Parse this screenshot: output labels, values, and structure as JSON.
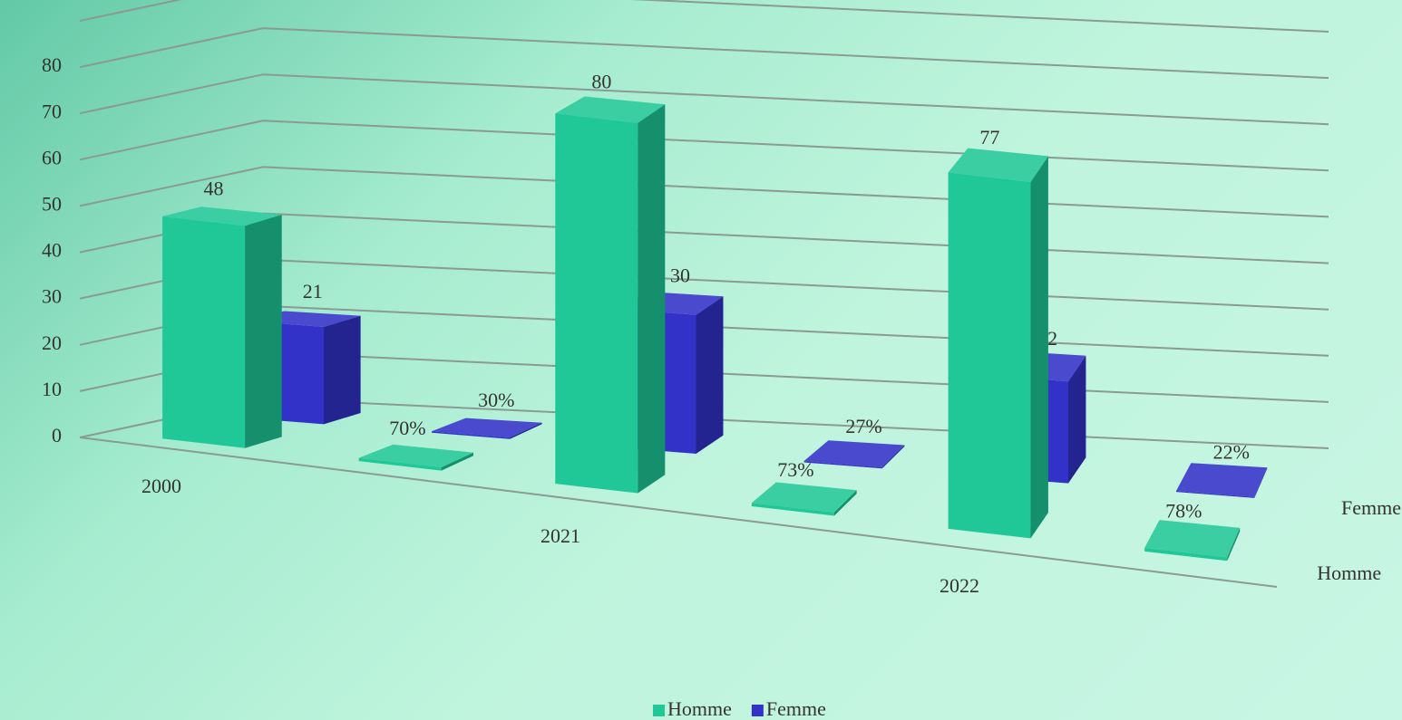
{
  "chart_data": {
    "type": "bar3d",
    "categories": [
      "2000",
      null,
      "2021",
      null,
      "2022",
      null
    ],
    "series": [
      {
        "name": "Homme",
        "color": "#1fc896",
        "values": [
          48,
          0.7,
          80,
          0.73,
          77,
          0.78
        ],
        "value_labels": [
          "48",
          "70%",
          "80",
          "73%",
          "77",
          "78%"
        ]
      },
      {
        "name": "Femme",
        "color": "#3232c8",
        "values": [
          21,
          0.3,
          30,
          0.27,
          22,
          0.22
        ],
        "value_labels": [
          "21",
          "30%",
          "30",
          "27%",
          "22",
          "22%"
        ]
      }
    ],
    "ylim": [
      0,
      90
    ],
    "yticks": [
      0,
      10,
      20,
      30,
      40,
      50,
      60,
      70,
      80
    ],
    "grid": true,
    "legend": "bottom"
  }
}
